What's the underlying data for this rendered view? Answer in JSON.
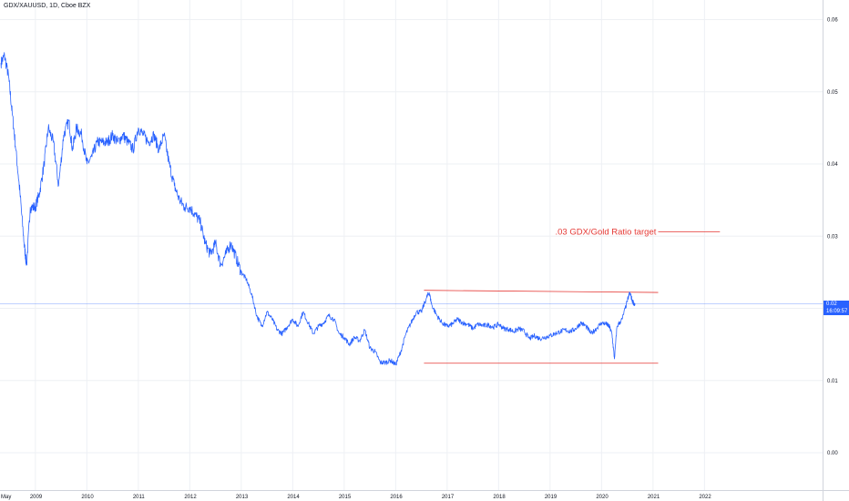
{
  "symbol_title": "GDX/XAUUSD, 1D, Cboe BZX",
  "current_price_label": "0.02",
  "countdown_label": "16:09:57",
  "colors": {
    "series": "#2962ff",
    "annotation": "#e53935",
    "price_line": "#2962ff",
    "grid": "#eef0f4"
  },
  "annotation_text": ".03 GDX/Gold Ratio target",
  "chart_data": {
    "type": "line",
    "title": "GDX/XAUUSD, 1D, Cboe BZX",
    "xlabel": "",
    "ylabel": "",
    "x_tick_labels": [
      "May",
      "2009",
      "2010",
      "2011",
      "2012",
      "2013",
      "2014",
      "2015",
      "2016",
      "2017",
      "2018",
      "2019",
      "2020",
      "2021",
      "2022"
    ],
    "x_tick_years": [
      2008.33,
      2009,
      2010,
      2011,
      2012,
      2013,
      2014,
      2015,
      2016,
      2017,
      2018,
      2019,
      2020,
      2021,
      2022
    ],
    "y_tick_labels": [
      "0.06",
      "0.05",
      "0.04",
      "0.03",
      "0.02",
      "0.01",
      "0.00"
    ],
    "y_tick_values": [
      0.06,
      0.05,
      0.04,
      0.03,
      0.02,
      0.01,
      0.0
    ],
    "xlim": [
      2008.33,
      2024.1
    ],
    "ylim": [
      -0.0013,
      0.0625
    ],
    "grid": true,
    "scale": "linear",
    "series": [
      {
        "x": [
          2008.33,
          2008.4,
          2008.48,
          2008.55,
          2008.62,
          2008.7,
          2008.78,
          2008.83,
          2008.9,
          2009.0,
          2009.08,
          2009.17,
          2009.25,
          2009.35,
          2009.45,
          2009.55,
          2009.65,
          2009.72,
          2009.8,
          2009.9,
          2010.0,
          2010.1,
          2010.2,
          2010.3,
          2010.4,
          2010.5,
          2010.6,
          2010.7,
          2010.8,
          2010.9,
          2011.0,
          2011.1,
          2011.2,
          2011.3,
          2011.4,
          2011.5,
          2011.6,
          2011.7,
          2011.8,
          2011.9,
          2012.0,
          2012.1,
          2012.2,
          2012.3,
          2012.4,
          2012.5,
          2012.6,
          2012.7,
          2012.8,
          2012.9,
          2013.0,
          2013.1,
          2013.2,
          2013.3,
          2013.4,
          2013.5,
          2013.6,
          2013.7,
          2013.8,
          2013.9,
          2014.0,
          2014.1,
          2014.2,
          2014.3,
          2014.4,
          2014.5,
          2014.6,
          2014.7,
          2014.8,
          2014.9,
          2015.0,
          2015.1,
          2015.2,
          2015.3,
          2015.4,
          2015.5,
          2015.6,
          2015.7,
          2015.8,
          2015.9,
          2016.0,
          2016.1,
          2016.2,
          2016.3,
          2016.4,
          2016.5,
          2016.6,
          2016.65,
          2016.7,
          2016.8,
          2016.9,
          2017.0,
          2017.1,
          2017.2,
          2017.3,
          2017.4,
          2017.5,
          2017.6,
          2017.7,
          2017.8,
          2017.9,
          2018.0,
          2018.1,
          2018.2,
          2018.3,
          2018.4,
          2018.5,
          2018.6,
          2018.7,
          2018.8,
          2018.9,
          2019.0,
          2019.1,
          2019.2,
          2019.3,
          2019.4,
          2019.5,
          2019.6,
          2019.7,
          2019.8,
          2019.9,
          2020.0,
          2020.1,
          2020.15,
          2020.2,
          2020.25,
          2020.3,
          2020.4,
          2020.5,
          2020.55,
          2020.6,
          2020.65
        ],
        "y": [
          0.054,
          0.055,
          0.052,
          0.047,
          0.042,
          0.036,
          0.029,
          0.026,
          0.034,
          0.034,
          0.036,
          0.04,
          0.045,
          0.043,
          0.037,
          0.044,
          0.046,
          0.042,
          0.045,
          0.044,
          0.04,
          0.041,
          0.043,
          0.043,
          0.043,
          0.044,
          0.043,
          0.044,
          0.043,
          0.042,
          0.045,
          0.044,
          0.043,
          0.044,
          0.042,
          0.044,
          0.04,
          0.037,
          0.035,
          0.034,
          0.034,
          0.033,
          0.032,
          0.029,
          0.0275,
          0.029,
          0.026,
          0.0275,
          0.029,
          0.027,
          0.025,
          0.024,
          0.022,
          0.019,
          0.0175,
          0.0195,
          0.0185,
          0.017,
          0.0165,
          0.0175,
          0.0185,
          0.0175,
          0.0195,
          0.018,
          0.0165,
          0.0175,
          0.018,
          0.019,
          0.0185,
          0.0165,
          0.016,
          0.015,
          0.016,
          0.0155,
          0.017,
          0.0145,
          0.014,
          0.0125,
          0.0125,
          0.0128,
          0.0122,
          0.014,
          0.0165,
          0.018,
          0.0195,
          0.0195,
          0.0215,
          0.0222,
          0.0205,
          0.019,
          0.018,
          0.0175,
          0.0178,
          0.0185,
          0.018,
          0.0178,
          0.0172,
          0.0178,
          0.0176,
          0.0177,
          0.0174,
          0.0178,
          0.0172,
          0.0171,
          0.0168,
          0.0172,
          0.0168,
          0.0158,
          0.0162,
          0.0158,
          0.016,
          0.0162,
          0.0165,
          0.0168,
          0.017,
          0.0168,
          0.0172,
          0.018,
          0.0175,
          0.0165,
          0.0172,
          0.018,
          0.0178,
          0.0175,
          0.0165,
          0.013,
          0.0175,
          0.0185,
          0.021,
          0.0222,
          0.021,
          0.0205
        ]
      }
    ],
    "annotations": [
      {
        "type": "horizontal_segment",
        "x_start": 2021.1,
        "x_end": 2022.3,
        "y": 0.0306
      },
      {
        "type": "text",
        "text": ".03 GDX/Gold Ratio target",
        "x": 2019.1,
        "y": 0.0306
      },
      {
        "type": "trendline",
        "x_start": 2016.55,
        "x_end": 2021.1,
        "y_start": 0.0225,
        "y_end": 0.0222
      },
      {
        "type": "trendline",
        "x_start": 2016.55,
        "x_end": 2021.1,
        "y_start": 0.0124,
        "y_end": 0.0124
      }
    ],
    "current_price_line": 0.0206
  }
}
